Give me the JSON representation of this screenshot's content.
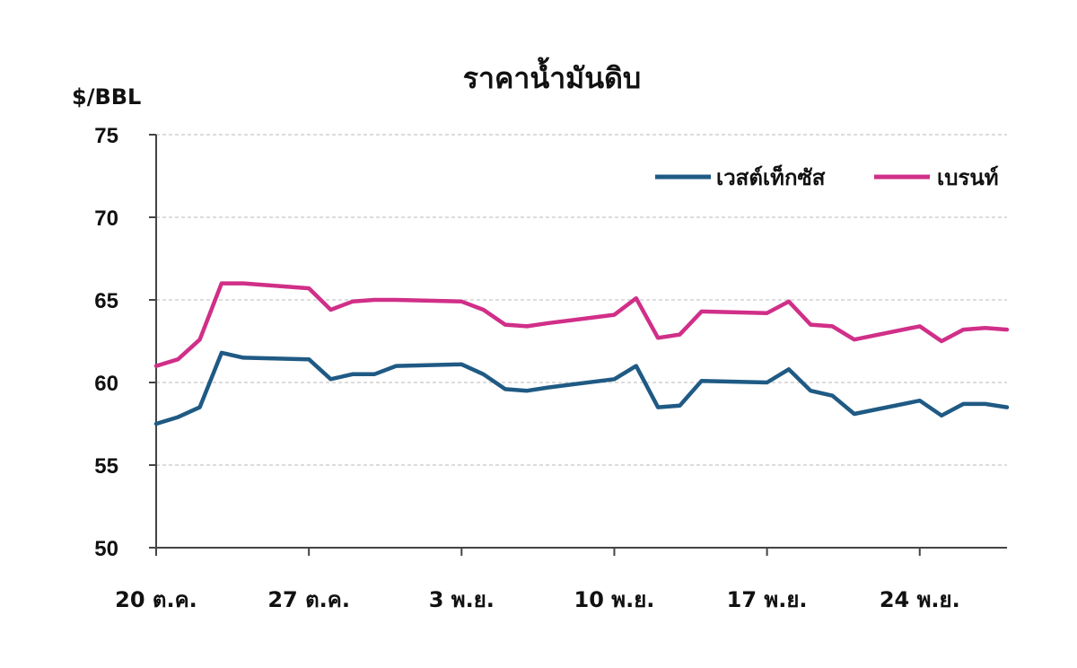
{
  "chart_data": {
    "type": "line",
    "title": "ราคาน้ำมันดิบ",
    "ylabel": "$/BBL",
    "xlabel": "",
    "ylim": [
      50,
      75
    ],
    "yticks": [
      "50",
      "55",
      "60",
      "65",
      "70",
      "75"
    ],
    "ytick_values": [
      50,
      55,
      60,
      65,
      70,
      75
    ],
    "x_range": [
      "20 ต.ค.",
      "28 พ.ย."
    ],
    "grid": true,
    "legend_position": "top-right",
    "xtick_labels": [
      {
        "label": "20 ต.ค.",
        "date": "20 ต.ค."
      },
      {
        "label": "27 ต.ค.",
        "date": "27 ต.ค."
      },
      {
        "label": "3 พ.ย.",
        "date": "3 พ.ย."
      },
      {
        "label": "10 พ.ย.",
        "date": "10 พ.ย."
      },
      {
        "label": "17 พ.ย.",
        "date": "17 พ.ย."
      },
      {
        "label": "24 พ.ย.",
        "date": "24 พ.ย."
      }
    ],
    "x": [
      "20 ต.ค.",
      "21 ต.ค.",
      "22 ต.ค.",
      "23 ต.ค.",
      "24 ต.ค.",
      "27 ต.ค.",
      "28 ต.ค.",
      "29 ต.ค.",
      "30 ต.ค.",
      "31 ต.ค.",
      "3 พ.ย.",
      "4 พ.ย.",
      "5 พ.ย.",
      "6 พ.ย.",
      "7 พ.ย.",
      "10 พ.ย.",
      "11 พ.ย.",
      "12 พ.ย.",
      "13 พ.ย.",
      "14 พ.ย.",
      "17 พ.ย.",
      "18 พ.ย.",
      "19 พ.ย.",
      "20 พ.ย.",
      "21 พ.ย.",
      "24 พ.ย.",
      "25 พ.ย.",
      "26 พ.ย.",
      "27 พ.ย.",
      "28 พ.ย."
    ],
    "x_offsets": [
      0,
      1,
      2,
      3,
      4,
      7,
      8,
      9,
      10,
      11,
      14,
      15,
      16,
      17,
      18,
      21,
      22,
      23,
      24,
      25,
      28,
      29,
      30,
      31,
      32,
      35,
      36,
      37,
      38,
      39
    ],
    "series": [
      {
        "name": "เวสต์เท็กซัส",
        "color": "#1f5a84",
        "values": [
          57.5,
          57.9,
          58.5,
          61.8,
          61.5,
          61.4,
          60.2,
          60.5,
          60.5,
          61.0,
          61.1,
          60.5,
          59.6,
          59.5,
          59.7,
          60.2,
          61.0,
          58.5,
          58.6,
          60.1,
          60.0,
          60.8,
          59.5,
          59.2,
          58.1,
          58.9,
          58.0,
          58.7,
          58.7,
          58.5
        ]
      },
      {
        "name": "เบรนท์",
        "color": "#d02f88",
        "values": [
          61.0,
          61.4,
          62.6,
          66.0,
          66.0,
          65.7,
          64.4,
          64.9,
          65.0,
          65.0,
          64.9,
          64.4,
          63.5,
          63.4,
          63.6,
          64.1,
          65.1,
          62.7,
          62.9,
          64.3,
          64.2,
          64.9,
          63.5,
          63.4,
          62.6,
          63.4,
          62.5,
          63.2,
          63.3,
          63.2
        ]
      }
    ]
  }
}
